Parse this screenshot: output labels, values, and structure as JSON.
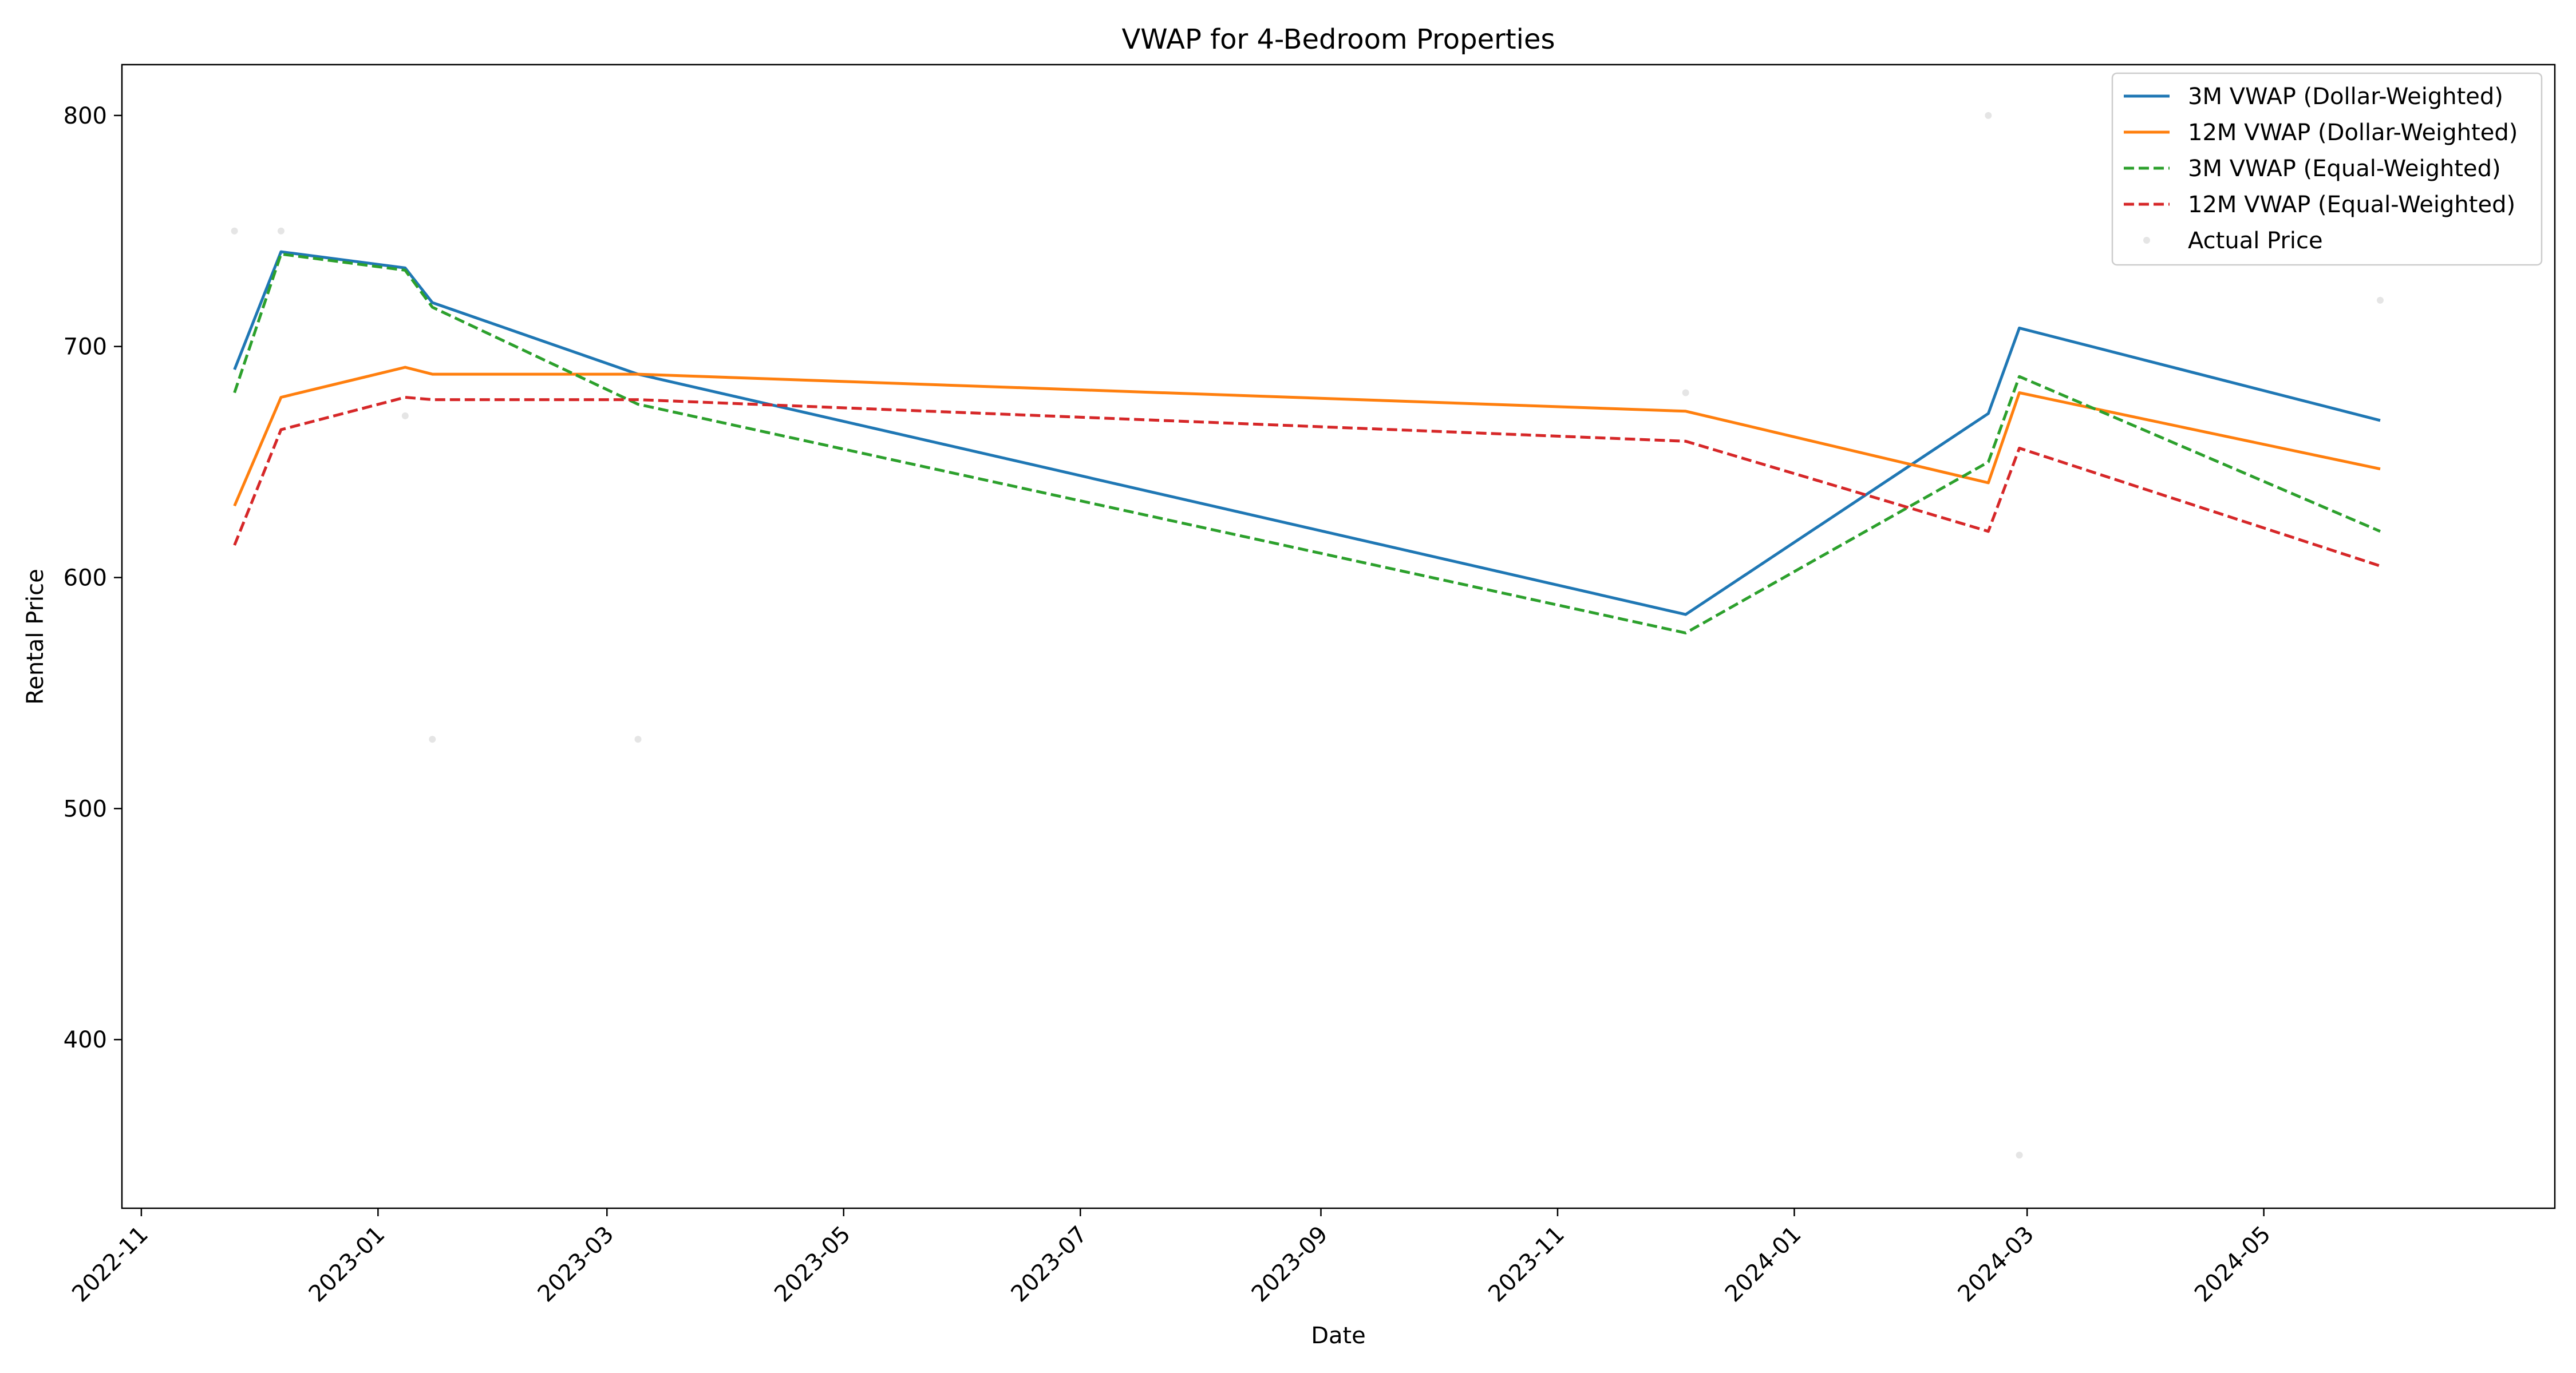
{
  "chart_data": {
    "type": "line",
    "title": "VWAP for 4-Bedroom Properties",
    "xlabel": "Date",
    "ylabel": "Rental Price",
    "x_axis_type": "date",
    "xlim": [
      "2022-10-27",
      "2024-07-15"
    ],
    "ylim": [
      327,
      822
    ],
    "x_ticks": [
      "2022-11-01",
      "2023-01-01",
      "2023-03-01",
      "2023-05-01",
      "2023-07-01",
      "2023-09-01",
      "2023-11-01",
      "2024-01-01",
      "2024-03-01",
      "2024-05-01"
    ],
    "x_tick_labels": [
      "2022-11",
      "2023-01",
      "2023-03",
      "2023-05",
      "2023-07",
      "2023-09",
      "2023-11",
      "2024-01",
      "2024-03",
      "2024-05"
    ],
    "y_ticks": [
      400,
      500,
      600,
      700,
      800
    ],
    "y_tick_labels": [
      "400",
      "500",
      "600",
      "700",
      "800"
    ],
    "grid": false,
    "legend_position": "top-right",
    "x": [
      "2022-11-25",
      "2022-12-07",
      "2023-01-08",
      "2023-01-15",
      "2023-03-09",
      "2023-12-04",
      "2024-02-20",
      "2024-02-28",
      "2024-05-31"
    ],
    "series": [
      {
        "name": "3M VWAP (Dollar-Weighted)",
        "color": "#1f77b4",
        "style": "solid",
        "values": [
          690,
          741,
          734,
          719,
          688,
          584,
          671,
          708,
          668
        ]
      },
      {
        "name": "12M VWAP (Dollar-Weighted)",
        "color": "#ff7f0e",
        "style": "solid",
        "values": [
          631,
          678,
          691,
          688,
          688,
          672,
          641,
          680,
          647
        ]
      },
      {
        "name": "3M VWAP (Equal-Weighted)",
        "color": "#2ca02c",
        "style": "dashed",
        "values": [
          680,
          740,
          733,
          717,
          675,
          576,
          650,
          687,
          620
        ]
      },
      {
        "name": "12M VWAP (Equal-Weighted)",
        "color": "#d62728",
        "style": "dashed",
        "values": [
          614,
          664,
          678,
          677,
          677,
          659,
          620,
          656,
          605
        ]
      }
    ],
    "scatter": {
      "name": "Actual Price",
      "color": "#d3d3d3",
      "points": [
        {
          "x": "2022-11-25",
          "y": 750
        },
        {
          "x": "2022-12-07",
          "y": 750
        },
        {
          "x": "2023-01-08",
          "y": 670
        },
        {
          "x": "2023-01-15",
          "y": 530
        },
        {
          "x": "2023-03-09",
          "y": 530
        },
        {
          "x": "2023-12-04",
          "y": 680
        },
        {
          "x": "2024-02-20",
          "y": 800
        },
        {
          "x": "2024-02-28",
          "y": 350
        },
        {
          "x": "2024-05-31",
          "y": 720
        }
      ]
    }
  }
}
